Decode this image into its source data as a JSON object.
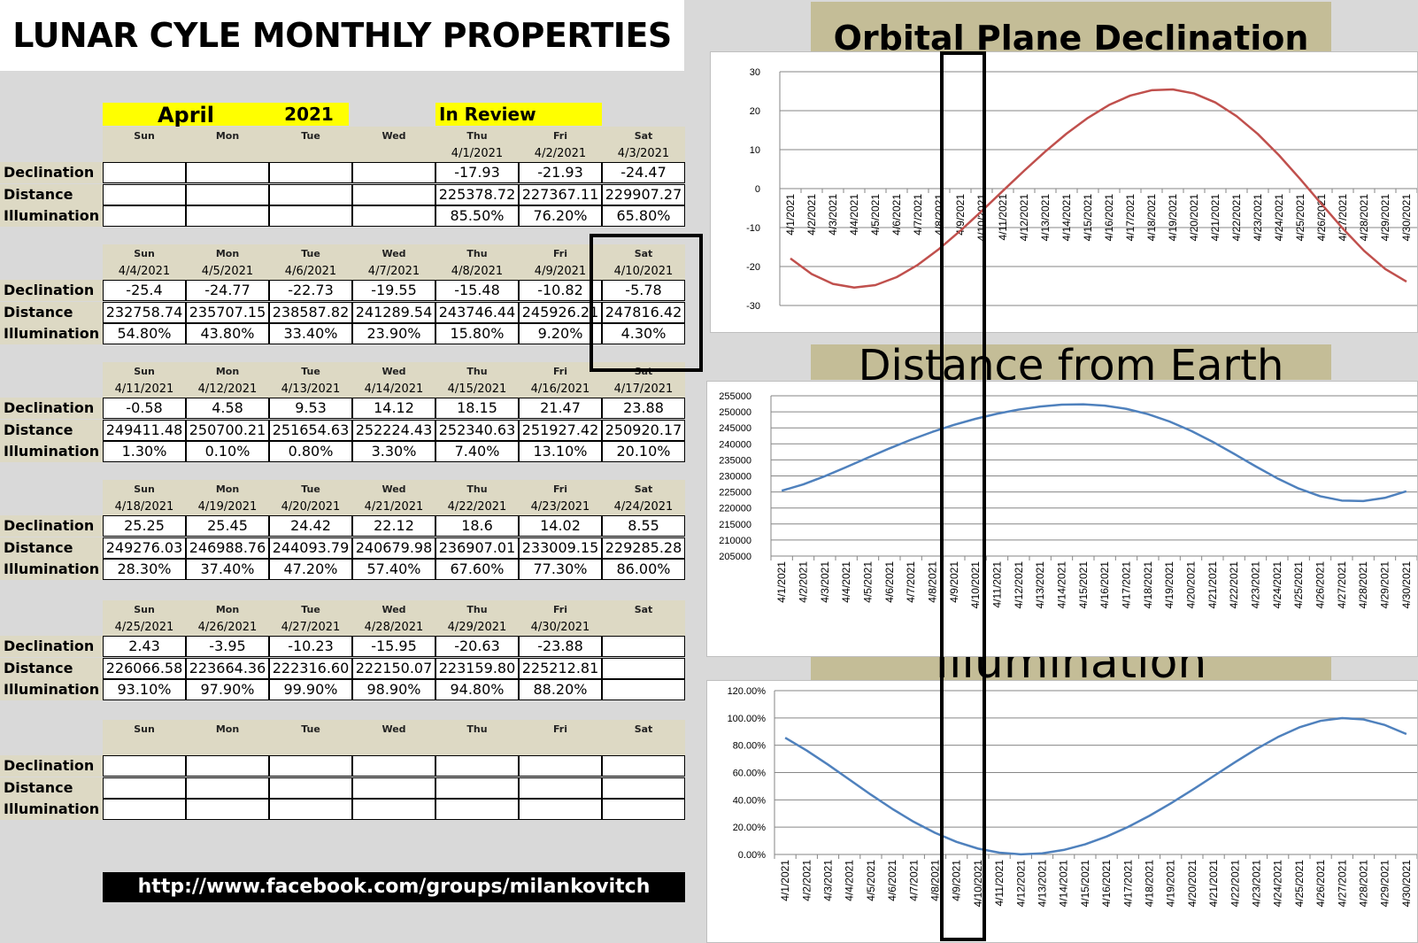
{
  "title": "LUNAR CYLE MONTHLY PROPERTIES",
  "month": "April",
  "year": "2021",
  "review_label": "In Review",
  "row_labels": [
    "Declination",
    "Distance",
    "Illumination"
  ],
  "day_names": [
    "Sun",
    "Mon",
    "Tue",
    "Wed",
    "Thu",
    "Fri",
    "Sat"
  ],
  "weeks": [
    {
      "dates": [
        "",
        "",
        "",
        "",
        "4/1/2021",
        "4/2/2021",
        "4/3/2021"
      ],
      "declination": [
        "",
        "",
        "",
        "",
        "-17.93",
        "-21.93",
        "-24.47"
      ],
      "distance": [
        "",
        "",
        "",
        "",
        "225378.72",
        "227367.11",
        "229907.27"
      ],
      "illumination": [
        "",
        "",
        "",
        "",
        "85.50%",
        "76.20%",
        "65.80%"
      ]
    },
    {
      "dates": [
        "4/4/2021",
        "4/5/2021",
        "4/6/2021",
        "4/7/2021",
        "4/8/2021",
        "4/9/2021",
        "4/10/2021"
      ],
      "declination": [
        "-25.4",
        "-24.77",
        "-22.73",
        "-19.55",
        "-15.48",
        "-10.82",
        "-5.78"
      ],
      "distance": [
        "232758.74",
        "235707.15",
        "238587.82",
        "241289.54",
        "243746.44",
        "245926.21",
        "247816.42"
      ],
      "illumination": [
        "54.80%",
        "43.80%",
        "33.40%",
        "23.90%",
        "15.80%",
        "9.20%",
        "4.30%"
      ]
    },
    {
      "dates": [
        "4/11/2021",
        "4/12/2021",
        "4/13/2021",
        "4/14/2021",
        "4/15/2021",
        "4/16/2021",
        "4/17/2021"
      ],
      "declination": [
        "-0.58",
        "4.58",
        "9.53",
        "14.12",
        "18.15",
        "21.47",
        "23.88"
      ],
      "distance": [
        "249411.48",
        "250700.21",
        "251654.63",
        "252224.43",
        "252340.63",
        "251927.42",
        "250920.17"
      ],
      "illumination": [
        "1.30%",
        "0.10%",
        "0.80%",
        "3.30%",
        "7.40%",
        "13.10%",
        "20.10%"
      ]
    },
    {
      "dates": [
        "4/18/2021",
        "4/19/2021",
        "4/20/2021",
        "4/21/2021",
        "4/22/2021",
        "4/23/2021",
        "4/24/2021"
      ],
      "declination": [
        "25.25",
        "25.45",
        "24.42",
        "22.12",
        "18.6",
        "14.02",
        "8.55"
      ],
      "distance": [
        "249276.03",
        "246988.76",
        "244093.79",
        "240679.98",
        "236907.01",
        "233009.15",
        "229285.28"
      ],
      "illumination": [
        "28.30%",
        "37.40%",
        "47.20%",
        "57.40%",
        "67.60%",
        "77.30%",
        "86.00%"
      ]
    },
    {
      "dates": [
        "4/25/2021",
        "4/26/2021",
        "4/27/2021",
        "4/28/2021",
        "4/29/2021",
        "4/30/2021",
        ""
      ],
      "declination": [
        "2.43",
        "-3.95",
        "-10.23",
        "-15.95",
        "-20.63",
        "-23.88",
        ""
      ],
      "distance": [
        "226066.58",
        "223664.36",
        "222316.60",
        "222150.07",
        "223159.80",
        "225212.81",
        ""
      ],
      "illumination": [
        "93.10%",
        "97.90%",
        "99.90%",
        "98.90%",
        "94.80%",
        "88.20%",
        ""
      ]
    },
    {
      "dates": [
        "",
        "",
        "",
        "",
        "",
        "",
        ""
      ],
      "declination": [
        "",
        "",
        "",
        "",
        "",
        "",
        ""
      ],
      "distance": [
        "",
        "",
        "",
        "",
        "",
        "",
        ""
      ],
      "illumination": [
        "",
        "",
        "",
        "",
        "",
        "",
        ""
      ]
    }
  ],
  "footer_url": "http://www.facebook.com/groups/milankovitch",
  "chart_data": [
    {
      "type": "line",
      "title": "Orbital Plane Declination",
      "x": [
        "4/1/2021",
        "4/2/2021",
        "4/3/2021",
        "4/4/2021",
        "4/5/2021",
        "4/6/2021",
        "4/7/2021",
        "4/8/2021",
        "4/9/2021",
        "4/10/2021",
        "4/11/2021",
        "4/12/2021",
        "4/13/2021",
        "4/14/2021",
        "4/15/2021",
        "4/16/2021",
        "4/17/2021",
        "4/18/2021",
        "4/19/2021",
        "4/20/2021",
        "4/21/2021",
        "4/22/2021",
        "4/23/2021",
        "4/24/2021",
        "4/25/2021",
        "4/26/2021",
        "4/27/2021",
        "4/28/2021",
        "4/29/2021",
        "4/30/2021"
      ],
      "values": [
        -17.93,
        -21.93,
        -24.47,
        -25.4,
        -24.77,
        -22.73,
        -19.55,
        -15.48,
        -10.82,
        -5.78,
        -0.58,
        4.58,
        9.53,
        14.12,
        18.15,
        21.47,
        23.88,
        25.25,
        25.45,
        24.42,
        22.12,
        18.6,
        14.02,
        8.55,
        2.43,
        -3.95,
        -10.23,
        -15.95,
        -20.63,
        -23.88
      ],
      "ylim": [
        -30,
        30
      ],
      "yticks": [
        30,
        20,
        10,
        0,
        -10,
        -20,
        -30
      ],
      "ytick_labels": [
        "30",
        "20",
        "10",
        "0",
        "-10",
        "-20",
        "-30"
      ],
      "color": "#c0504d",
      "grid": true
    },
    {
      "type": "line",
      "title": "Distance from Earth",
      "x": [
        "4/1/2021",
        "4/2/2021",
        "4/3/2021",
        "4/4/2021",
        "4/5/2021",
        "4/6/2021",
        "4/7/2021",
        "4/8/2021",
        "4/9/2021",
        "4/10/2021",
        "4/11/2021",
        "4/12/2021",
        "4/13/2021",
        "4/14/2021",
        "4/15/2021",
        "4/16/2021",
        "4/17/2021",
        "4/18/2021",
        "4/19/2021",
        "4/20/2021",
        "4/21/2021",
        "4/22/2021",
        "4/23/2021",
        "4/24/2021",
        "4/25/2021",
        "4/26/2021",
        "4/27/2021",
        "4/28/2021",
        "4/29/2021",
        "4/30/2021"
      ],
      "values": [
        225378.72,
        227367.11,
        229907.27,
        232758.74,
        235707.15,
        238587.82,
        241289.54,
        243746.44,
        245926.21,
        247816.42,
        249411.48,
        250700.21,
        251654.63,
        252224.43,
        252340.63,
        251927.42,
        250920.17,
        249276.03,
        246988.76,
        244093.79,
        240679.98,
        236907.01,
        233009.15,
        229285.28,
        226066.58,
        223664.36,
        222316.6,
        222150.07,
        223159.8,
        225212.81
      ],
      "ylim": [
        205000,
        255000
      ],
      "yticks": [
        255000,
        250000,
        245000,
        240000,
        235000,
        230000,
        225000,
        220000,
        215000,
        210000,
        205000
      ],
      "ytick_labels": [
        "255000",
        "250000",
        "245000",
        "240000",
        "235000",
        "230000",
        "225000",
        "220000",
        "215000",
        "210000",
        "205000"
      ],
      "color": "#4f81bd",
      "grid": true
    },
    {
      "type": "line",
      "title": "Illumination",
      "x": [
        "4/1/2021",
        "4/2/2021",
        "4/3/2021",
        "4/4/2021",
        "4/5/2021",
        "4/6/2021",
        "4/7/2021",
        "4/8/2021",
        "4/9/2021",
        "4/10/2021",
        "4/11/2021",
        "4/12/2021",
        "4/13/2021",
        "4/14/2021",
        "4/15/2021",
        "4/16/2021",
        "4/17/2021",
        "4/18/2021",
        "4/19/2021",
        "4/20/2021",
        "4/21/2021",
        "4/22/2021",
        "4/23/2021",
        "4/24/2021",
        "4/25/2021",
        "4/26/2021",
        "4/27/2021",
        "4/28/2021",
        "4/29/2021",
        "4/30/2021"
      ],
      "values": [
        85.5,
        76.2,
        65.8,
        54.8,
        43.8,
        33.4,
        23.9,
        15.8,
        9.2,
        4.3,
        1.3,
        0.1,
        0.8,
        3.3,
        7.4,
        13.1,
        20.1,
        28.3,
        37.4,
        47.2,
        57.4,
        67.6,
        77.3,
        86.0,
        93.1,
        97.9,
        99.9,
        98.9,
        94.8,
        88.2
      ],
      "ylim": [
        0,
        120
      ],
      "yticks": [
        120,
        100,
        80,
        60,
        40,
        20,
        0
      ],
      "ytick_labels": [
        "120.00%",
        "100.00%",
        "80.00%",
        "60.00%",
        "40.00%",
        "20.00%",
        "0.00%"
      ],
      "color": "#4f81bd",
      "grid": true
    }
  ]
}
